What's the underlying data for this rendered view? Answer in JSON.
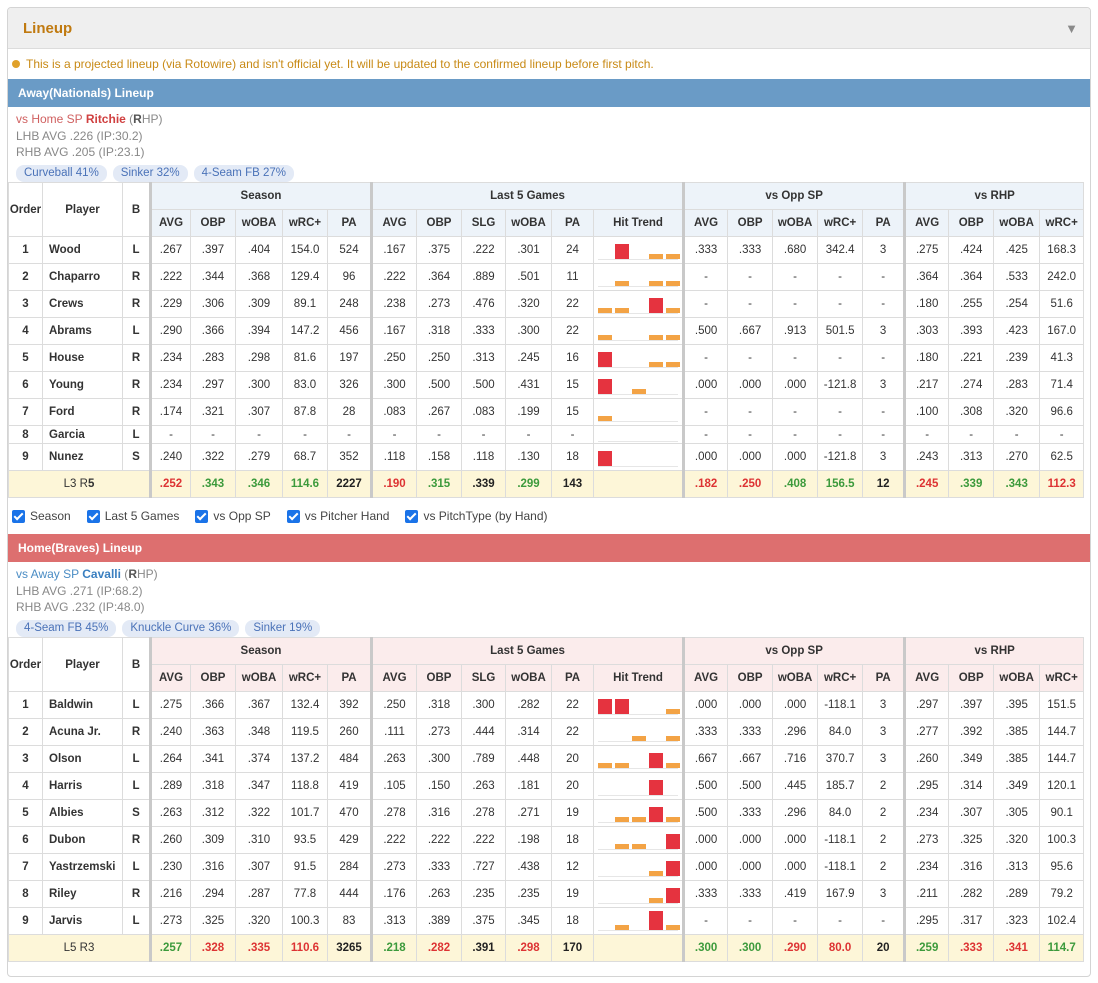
{
  "panel": {
    "title": "Lineup"
  },
  "notice": "This is a projected lineup (via Rotowire) and isn't official yet. It will be updated to the confirmed lineup before first pitch.",
  "headers": {
    "order": "Order",
    "player": "Player",
    "bats": "B",
    "groups": [
      "Season",
      "Last 5 Games",
      "vs Opp SP",
      "vs RHP"
    ],
    "season_cols": [
      "AVG",
      "OBP",
      "wOBA",
      "wRC+",
      "PA"
    ],
    "last5_cols": [
      "AVG",
      "OBP",
      "SLG",
      "wOBA",
      "PA",
      "Hit Trend"
    ],
    "opp_cols": [
      "AVG",
      "OBP",
      "wOBA",
      "wRC+",
      "PA"
    ],
    "rhp_cols": [
      "AVG",
      "OBP",
      "wOBA",
      "wRC+"
    ]
  },
  "filters": [
    "Season",
    "Last 5 Games",
    "vs Opp SP",
    "vs Pitcher Hand",
    "vs PitchType (by Hand)"
  ],
  "colors": {
    "bar_red": "#e5333f",
    "bar_orange": "#f3a345",
    "away_header": "#6a9bc6",
    "home_header": "#dd6f6f"
  },
  "away": {
    "header": "Away(Nationals) Lineup",
    "sp": {
      "prefix": "vs Home SP ",
      "name": "Ritchie",
      "hand_open": " (",
      "hand_bold": "R",
      "hand_close": "HP)",
      "lhb": "LHB AVG .226 (IP:30.2)",
      "rhb": "RHB AVG .205 (IP:23.1)"
    },
    "pitches": [
      "Curveball 41%",
      "Sinker 32%",
      "4-Seam FB 27%"
    ],
    "rows": [
      {
        "order": "1",
        "player": "Wood",
        "bats": "L",
        "season": [
          ".267",
          ".397",
          ".404",
          "154.0",
          "524"
        ],
        "last5": [
          ".167",
          ".375",
          ".222",
          ".301",
          "24"
        ],
        "trend": [
          0,
          3,
          0,
          1,
          1
        ],
        "opp": [
          ".333",
          ".333",
          ".680",
          "342.4",
          "3"
        ],
        "rhp": [
          ".275",
          ".424",
          ".425",
          "168.3"
        ]
      },
      {
        "order": "2",
        "player": "Chaparro",
        "bats": "R",
        "season": [
          ".222",
          ".344",
          ".368",
          "129.4",
          "96"
        ],
        "last5": [
          ".222",
          ".364",
          ".889",
          ".501",
          "11"
        ],
        "trend": [
          0,
          1,
          0,
          1,
          1
        ],
        "opp": [
          "-",
          "-",
          "-",
          "-",
          "-"
        ],
        "rhp": [
          ".364",
          ".364",
          ".533",
          "242.0"
        ]
      },
      {
        "order": "3",
        "player": "Crews",
        "bats": "R",
        "season": [
          ".229",
          ".306",
          ".309",
          "89.1",
          "248"
        ],
        "last5": [
          ".238",
          ".273",
          ".476",
          ".320",
          "22"
        ],
        "trend": [
          1,
          1,
          0,
          3,
          1
        ],
        "opp": [
          "-",
          "-",
          "-",
          "-",
          "-"
        ],
        "rhp": [
          ".180",
          ".255",
          ".254",
          "51.6"
        ]
      },
      {
        "order": "4",
        "player": "Abrams",
        "bats": "L",
        "season": [
          ".290",
          ".366",
          ".394",
          "147.2",
          "456"
        ],
        "last5": [
          ".167",
          ".318",
          ".333",
          ".300",
          "22"
        ],
        "trend": [
          1,
          0,
          0,
          1,
          1
        ],
        "opp": [
          ".500",
          ".667",
          ".913",
          "501.5",
          "3"
        ],
        "rhp": [
          ".303",
          ".393",
          ".423",
          "167.0"
        ]
      },
      {
        "order": "5",
        "player": "House",
        "bats": "R",
        "season": [
          ".234",
          ".283",
          ".298",
          "81.6",
          "197"
        ],
        "last5": [
          ".250",
          ".250",
          ".313",
          ".245",
          "16"
        ],
        "trend": [
          3,
          0,
          0,
          1,
          1
        ],
        "opp": [
          "-",
          "-",
          "-",
          "-",
          "-"
        ],
        "rhp": [
          ".180",
          ".221",
          ".239",
          "41.3"
        ]
      },
      {
        "order": "6",
        "player": "Young",
        "bats": "R",
        "season": [
          ".234",
          ".297",
          ".300",
          "83.0",
          "326"
        ],
        "last5": [
          ".300",
          ".500",
          ".500",
          ".431",
          "15"
        ],
        "trend": [
          3,
          0,
          1,
          0,
          0
        ],
        "opp": [
          ".000",
          ".000",
          ".000",
          "-121.8",
          "3"
        ],
        "rhp": [
          ".217",
          ".274",
          ".283",
          "71.4"
        ]
      },
      {
        "order": "7",
        "player": "Ford",
        "bats": "R",
        "season": [
          ".174",
          ".321",
          ".307",
          "87.8",
          "28"
        ],
        "last5": [
          ".083",
          ".267",
          ".083",
          ".199",
          "15"
        ],
        "trend": [
          1,
          0,
          0,
          0,
          0
        ],
        "opp": [
          "-",
          "-",
          "-",
          "-",
          "-"
        ],
        "rhp": [
          ".100",
          ".308",
          ".320",
          "96.6"
        ]
      },
      {
        "order": "8",
        "player": "Garcia",
        "bats": "L",
        "season": [
          "-",
          "-",
          "-",
          "-",
          "-"
        ],
        "last5": [
          "-",
          "-",
          "-",
          "-",
          "-"
        ],
        "trend": [
          0,
          0,
          0,
          0,
          0
        ],
        "opp": [
          "-",
          "-",
          "-",
          "-",
          "-"
        ],
        "rhp": [
          "-",
          "-",
          "-",
          "-"
        ]
      },
      {
        "order": "9",
        "player": "Nunez",
        "bats": "S",
        "season": [
          ".240",
          ".322",
          ".279",
          "68.7",
          "352"
        ],
        "last5": [
          ".118",
          ".158",
          ".118",
          ".130",
          "18"
        ],
        "trend": [
          3,
          0,
          0,
          0,
          0
        ],
        "opp": [
          ".000",
          ".000",
          ".000",
          "-121.8",
          "3"
        ],
        "rhp": [
          ".243",
          ".313",
          ".270",
          "62.5"
        ]
      }
    ],
    "total": {
      "label_l": "L3 R",
      "label_bold": "5",
      "season": [
        ".252",
        ".343",
        ".346",
        "114.6",
        "2227"
      ],
      "last5": [
        ".190",
        ".315",
        ".339",
        ".299",
        "143"
      ],
      "opp": [
        ".182",
        ".250",
        ".408",
        "156.5",
        "12"
      ],
      "rhp": [
        ".245",
        ".339",
        ".343",
        "112.3"
      ]
    }
  },
  "home": {
    "header": "Home(Braves) Lineup",
    "sp": {
      "prefix": "vs Away SP ",
      "name": "Cavalli",
      "hand_open": " (",
      "hand_bold": "R",
      "hand_close": "HP)",
      "lhb": "LHB AVG .271 (IP:68.2)",
      "rhb": "RHB AVG .232 (IP:48.0)"
    },
    "pitches": [
      "4-Seam FB 45%",
      "Knuckle Curve 36%",
      "Sinker 19%"
    ],
    "rows": [
      {
        "order": "1",
        "player": "Baldwin",
        "bats": "L",
        "season": [
          ".275",
          ".366",
          ".367",
          "132.4",
          "392"
        ],
        "last5": [
          ".250",
          ".318",
          ".300",
          ".282",
          "22"
        ],
        "trend": [
          3,
          3,
          0,
          0,
          1
        ],
        "opp": [
          ".000",
          ".000",
          ".000",
          "-118.1",
          "3"
        ],
        "rhp": [
          ".297",
          ".397",
          ".395",
          "151.5"
        ]
      },
      {
        "order": "2",
        "player": "Acuna Jr.",
        "bats": "R",
        "season": [
          ".240",
          ".363",
          ".348",
          "119.5",
          "260"
        ],
        "last5": [
          ".111",
          ".273",
          ".444",
          ".314",
          "22"
        ],
        "trend": [
          0,
          0,
          1,
          0,
          1
        ],
        "opp": [
          ".333",
          ".333",
          ".296",
          "84.0",
          "3"
        ],
        "rhp": [
          ".277",
          ".392",
          ".385",
          "144.7"
        ]
      },
      {
        "order": "3",
        "player": "Olson",
        "bats": "L",
        "season": [
          ".264",
          ".341",
          ".374",
          "137.2",
          "484"
        ],
        "last5": [
          ".263",
          ".300",
          ".789",
          ".448",
          "20"
        ],
        "trend": [
          1,
          1,
          0,
          3,
          1
        ],
        "opp": [
          ".667",
          ".667",
          ".716",
          "370.7",
          "3"
        ],
        "rhp": [
          ".260",
          ".349",
          ".385",
          "144.7"
        ]
      },
      {
        "order": "4",
        "player": "Harris",
        "bats": "L",
        "season": [
          ".289",
          ".318",
          ".347",
          "118.8",
          "419"
        ],
        "last5": [
          ".105",
          ".150",
          ".263",
          ".181",
          "20"
        ],
        "trend": [
          0,
          0,
          0,
          3,
          0
        ],
        "opp": [
          ".500",
          ".500",
          ".445",
          "185.7",
          "2"
        ],
        "rhp": [
          ".295",
          ".314",
          ".349",
          "120.1"
        ]
      },
      {
        "order": "5",
        "player": "Albies",
        "bats": "S",
        "season": [
          ".263",
          ".312",
          ".322",
          "101.7",
          "470"
        ],
        "last5": [
          ".278",
          ".316",
          ".278",
          ".271",
          "19"
        ],
        "trend": [
          0,
          1,
          1,
          3,
          1
        ],
        "opp": [
          ".500",
          ".333",
          ".296",
          "84.0",
          "2"
        ],
        "rhp": [
          ".234",
          ".307",
          ".305",
          "90.1"
        ]
      },
      {
        "order": "6",
        "player": "Dubon",
        "bats": "R",
        "season": [
          ".260",
          ".309",
          ".310",
          "93.5",
          "429"
        ],
        "last5": [
          ".222",
          ".222",
          ".222",
          ".198",
          "18"
        ],
        "trend": [
          0,
          1,
          1,
          0,
          3
        ],
        "opp": [
          ".000",
          ".000",
          ".000",
          "-118.1",
          "2"
        ],
        "rhp": [
          ".273",
          ".325",
          ".320",
          "100.3"
        ]
      },
      {
        "order": "7",
        "player": "Yastrzemski",
        "bats": "L",
        "season": [
          ".230",
          ".316",
          ".307",
          "91.5",
          "284"
        ],
        "last5": [
          ".273",
          ".333",
          ".727",
          ".438",
          "12"
        ],
        "trend": [
          0,
          0,
          0,
          1,
          3
        ],
        "opp": [
          ".000",
          ".000",
          ".000",
          "-118.1",
          "2"
        ],
        "rhp": [
          ".234",
          ".316",
          ".313",
          "95.6"
        ]
      },
      {
        "order": "8",
        "player": "Riley",
        "bats": "R",
        "season": [
          ".216",
          ".294",
          ".287",
          "77.8",
          "444"
        ],
        "last5": [
          ".176",
          ".263",
          ".235",
          ".235",
          "19"
        ],
        "trend": [
          0,
          0,
          0,
          1,
          3
        ],
        "opp": [
          ".333",
          ".333",
          ".419",
          "167.9",
          "3"
        ],
        "rhp": [
          ".211",
          ".282",
          ".289",
          "79.2"
        ]
      },
      {
        "order": "9",
        "player": "Jarvis",
        "bats": "L",
        "season": [
          ".273",
          ".325",
          ".320",
          "100.3",
          "83"
        ],
        "last5": [
          ".313",
          ".389",
          ".375",
          ".345",
          "18"
        ],
        "trend": [
          0,
          1,
          0,
          4,
          1
        ],
        "opp": [
          "-",
          "-",
          "-",
          "-",
          "-"
        ],
        "rhp": [
          ".295",
          ".317",
          ".323",
          "102.4"
        ]
      }
    ],
    "total": {
      "label_l": "L5 R3",
      "label_bold": "",
      "season": [
        ".257",
        ".328",
        ".335",
        "110.6",
        "3265"
      ],
      "last5": [
        ".218",
        ".282",
        ".391",
        ".298",
        "170"
      ],
      "opp": [
        ".300",
        ".300",
        ".290",
        "80.0",
        "20"
      ],
      "rhp": [
        ".259",
        ".333",
        ".341",
        "114.7"
      ]
    }
  },
  "total_colors": {
    "away": {
      "season": [
        "red",
        "green",
        "green",
        "green",
        "blk"
      ],
      "last5": [
        "red",
        "green",
        "blk",
        "green",
        "blk"
      ],
      "opp": [
        "red",
        "red",
        "green",
        "green",
        "blk"
      ],
      "rhp": [
        "red",
        "green",
        "green",
        "red"
      ]
    },
    "home": {
      "season": [
        "green",
        "red",
        "red",
        "red",
        "blk"
      ],
      "last5": [
        "green",
        "red",
        "blk",
        "red",
        "blk"
      ],
      "opp": [
        "green",
        "green",
        "red",
        "red",
        "blk"
      ],
      "rhp": [
        "green",
        "red",
        "red",
        "green"
      ]
    }
  }
}
